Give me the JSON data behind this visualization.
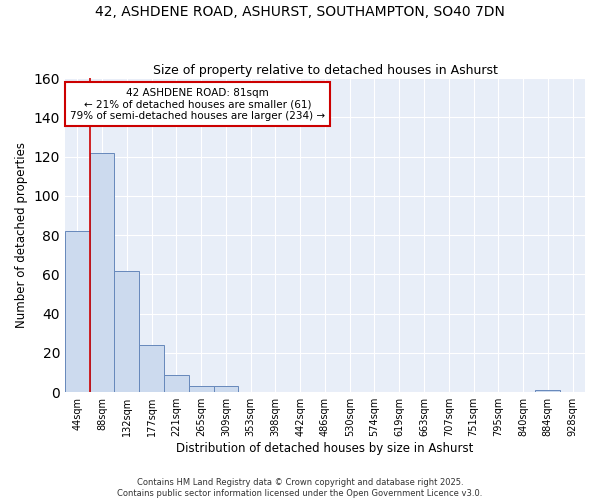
{
  "title": "42, ASHDENE ROAD, ASHURST, SOUTHAMPTON, SO40 7DN",
  "subtitle": "Size of property relative to detached houses in Ashurst",
  "xlabel": "Distribution of detached houses by size in Ashurst",
  "ylabel": "Number of detached properties",
  "categories": [
    "44sqm",
    "88sqm",
    "132sqm",
    "177sqm",
    "221sqm",
    "265sqm",
    "309sqm",
    "353sqm",
    "398sqm",
    "442sqm",
    "486sqm",
    "530sqm",
    "574sqm",
    "619sqm",
    "663sqm",
    "707sqm",
    "751sqm",
    "795sqm",
    "840sqm",
    "884sqm",
    "928sqm"
  ],
  "values": [
    82,
    122,
    62,
    24,
    9,
    3,
    3,
    0,
    0,
    0,
    0,
    0,
    0,
    0,
    0,
    0,
    0,
    0,
    0,
    1,
    0
  ],
  "bar_color": "#ccdaee",
  "bar_edge_color": "#6688bb",
  "background_color": "#e8eef8",
  "grid_color": "#ffffff",
  "ylim": [
    0,
    160
  ],
  "yticks": [
    0,
    20,
    40,
    60,
    80,
    100,
    120,
    140,
    160
  ],
  "vline_x_index": 0.5,
  "vline_color": "#cc0000",
  "annotation_line1": "42 ASHDENE ROAD: 81sqm",
  "annotation_line2": "← 21% of detached houses are smaller (61)",
  "annotation_line3": "79% of semi-detached houses are larger (234) →",
  "annotation_box_color": "#cc0000",
  "footer_line1": "Contains HM Land Registry data © Crown copyright and database right 2025.",
  "footer_line2": "Contains public sector information licensed under the Open Government Licence v3.0.",
  "fig_bg": "#ffffff"
}
